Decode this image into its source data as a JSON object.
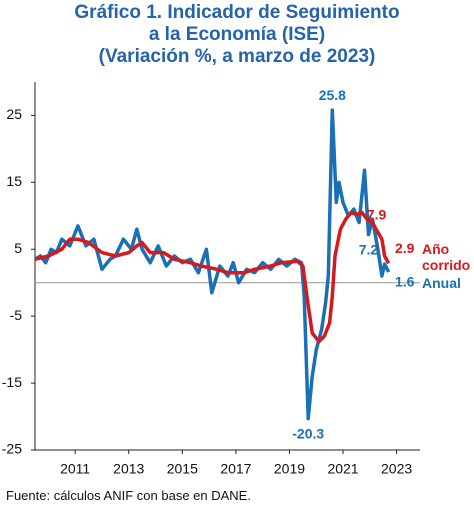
{
  "chart_data": {
    "type": "line",
    "title": [
      "Gráfico 1. Indicador de Seguimiento",
      "a la Economía (ISE)",
      "(Variación %, a marzo de 2023)"
    ],
    "source": "Fuente: cálculos ANIF con base en DANE.",
    "xlim": [
      2010,
      2024
    ],
    "xticks": [
      {
        "value": 2011.5,
        "label": "2011"
      },
      {
        "value": 2013.5,
        "label": "2013"
      },
      {
        "value": 2015.5,
        "label": "2015"
      },
      {
        "value": 2017.5,
        "label": "2017"
      },
      {
        "value": 2019.5,
        "label": "2019"
      },
      {
        "value": 2021.5,
        "label": "2021"
      },
      {
        "value": 2023.5,
        "label": "2023"
      }
    ],
    "ylim": [
      -25,
      30
    ],
    "yticks": [
      25,
      15,
      5,
      -5,
      -15,
      -25
    ],
    "zero_line": true,
    "series": [
      {
        "name": "Anual",
        "color": "#1a6fb5",
        "x": [
          2010.0,
          2010.2,
          2010.4,
          2010.6,
          2010.8,
          2011.0,
          2011.3,
          2011.6,
          2011.9,
          2012.2,
          2012.5,
          2012.8,
          2013.0,
          2013.3,
          2013.6,
          2013.8,
          2014.0,
          2014.3,
          2014.6,
          2014.9,
          2015.2,
          2015.5,
          2015.8,
          2016.1,
          2016.4,
          2016.6,
          2016.9,
          2017.2,
          2017.4,
          2017.6,
          2017.9,
          2018.2,
          2018.5,
          2018.8,
          2019.1,
          2019.4,
          2019.7,
          2019.95,
          2020.05,
          2020.2,
          2020.35,
          2020.5,
          2020.7,
          2020.85,
          2020.95,
          2021.1,
          2021.25,
          2021.35,
          2021.5,
          2021.7,
          2021.9,
          2022.1,
          2022.3,
          2022.45,
          2022.6,
          2022.8,
          2022.95,
          2023.05,
          2023.2
        ],
        "values": [
          3.5,
          4,
          3,
          5,
          4.5,
          6.5,
          5.5,
          8.5,
          5.5,
          6.5,
          2,
          3.5,
          4,
          6.5,
          5,
          8,
          5,
          3,
          5.5,
          2.5,
          4,
          3,
          3.5,
          1.5,
          5,
          -1.5,
          2.5,
          1,
          3,
          0,
          2,
          1.5,
          3,
          2,
          3.5,
          2.5,
          3.5,
          3,
          -2,
          -20.3,
          -14,
          -10,
          -7,
          -3,
          1,
          25.8,
          12,
          15,
          12,
          10,
          11,
          9,
          16.8,
          7.2,
          9.5,
          5,
          1,
          2.8,
          1.6
        ],
        "value_labels": [
          null,
          null,
          null,
          null,
          null,
          null,
          null,
          null,
          null,
          null,
          null,
          null,
          null,
          null,
          null,
          null,
          null,
          null,
          null,
          null,
          null,
          null,
          null,
          null,
          null,
          null,
          null,
          null,
          null,
          null,
          null,
          null,
          null,
          null,
          null,
          null,
          null,
          null,
          null,
          "-20.3",
          null,
          null,
          null,
          null,
          null,
          "25.8",
          null,
          null,
          null,
          null,
          null,
          null,
          null,
          "7.2",
          null,
          null,
          null,
          null,
          "1.6"
        ]
      },
      {
        "name": "Año corrido",
        "color": "#d7191c",
        "x": [
          2010.0,
          2010.5,
          2011.0,
          2011.3,
          2011.6,
          2012.0,
          2012.5,
          2013.0,
          2013.5,
          2013.8,
          2014.0,
          2014.3,
          2014.8,
          2015.2,
          2015.8,
          2016.2,
          2016.8,
          2017.2,
          2017.8,
          2018.2,
          2018.8,
          2019.2,
          2019.8,
          2020.0,
          2020.15,
          2020.35,
          2020.6,
          2020.8,
          2021.0,
          2021.1,
          2021.2,
          2021.4,
          2021.6,
          2021.8,
          2022.0,
          2022.2,
          2022.4,
          2022.6,
          2022.75,
          2022.95,
          2023.05,
          2023.2
        ],
        "values": [
          3.5,
          4,
          5,
          6.5,
          6.5,
          6,
          4.5,
          4,
          4.5,
          5.5,
          6,
          4.5,
          4.5,
          3.5,
          3,
          2.5,
          2,
          1.5,
          1.5,
          2,
          2.5,
          3,
          3.2,
          2.5,
          -2,
          -7.5,
          -8.8,
          -8,
          -6,
          -2,
          4,
          8,
          9.5,
          10.5,
          10.2,
          10.5,
          9.5,
          9,
          7.9,
          6.5,
          4,
          2.9
        ],
        "value_labels": [
          null,
          null,
          null,
          null,
          null,
          null,
          null,
          null,
          null,
          null,
          null,
          null,
          null,
          null,
          null,
          null,
          null,
          null,
          null,
          null,
          null,
          null,
          null,
          null,
          null,
          null,
          null,
          null,
          null,
          null,
          null,
          null,
          null,
          null,
          null,
          null,
          null,
          null,
          "7.9",
          null,
          null,
          "2.9"
        ]
      }
    ]
  }
}
